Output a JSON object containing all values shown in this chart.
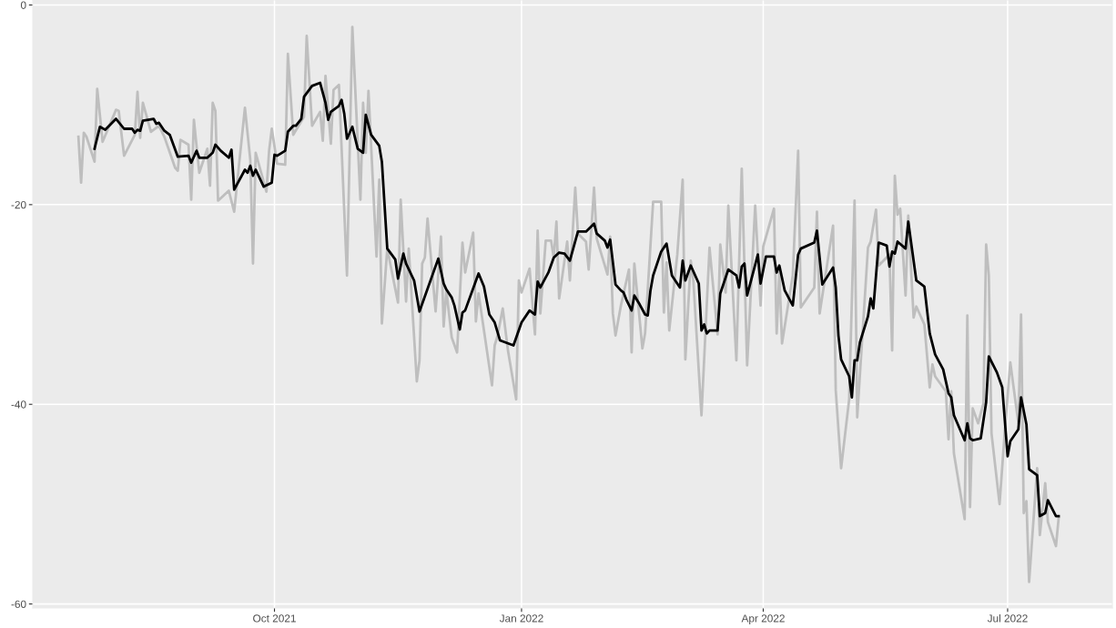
{
  "chart_data": {
    "type": "line",
    "xlim": [
      "2021-07-03",
      "2022-08-09"
    ],
    "xticks": [
      {
        "value": "2021-10-01",
        "label": "Oct 2021"
      },
      {
        "value": "2022-01-01",
        "label": "Jan 2022"
      },
      {
        "value": "2022-04-01",
        "label": "Apr 2022"
      },
      {
        "value": "2022-07-01",
        "label": "Jul 2022"
      }
    ],
    "ylim": [
      -60.4,
      0.5
    ],
    "yticks": [
      -60,
      -40,
      -20,
      0
    ],
    "grid": true,
    "line_style": "solid",
    "marker": "none",
    "series": [
      {
        "color": "#bebebe",
        "x": [
          "2021-07-20",
          "2021-07-21",
          "2021-07-22",
          "2021-07-23",
          "2021-07-26",
          "2021-07-27",
          "2021-07-29",
          "2021-08-03",
          "2021-08-04",
          "2021-08-06",
          "2021-08-10",
          "2021-08-11",
          "2021-08-12",
          "2021-08-13",
          "2021-08-16",
          "2021-08-19",
          "2021-08-21",
          "2021-08-25",
          "2021-08-26",
          "2021-08-27",
          "2021-08-30",
          "2021-08-31",
          "2021-09-01",
          "2021-09-03",
          "2021-09-06",
          "2021-09-07",
          "2021-09-08",
          "2021-09-09",
          "2021-09-10",
          "2021-09-14",
          "2021-09-16",
          "2021-09-20",
          "2021-09-22",
          "2021-09-23",
          "2021-09-24",
          "2021-09-28",
          "2021-09-29",
          "2021-09-30",
          "2021-10-02",
          "2021-10-05",
          "2021-10-06",
          "2021-10-08",
          "2021-10-12",
          "2021-10-13",
          "2021-10-15",
          "2021-10-18",
          "2021-10-19",
          "2021-10-20",
          "2021-10-22",
          "2021-10-23",
          "2021-10-25",
          "2021-10-28",
          "2021-10-30",
          "2021-11-02",
          "2021-11-03",
          "2021-11-04",
          "2021-11-05",
          "2021-11-08",
          "2021-11-09",
          "2021-11-10",
          "2021-11-12",
          "2021-11-16",
          "2021-11-17",
          "2021-11-19",
          "2021-11-20",
          "2021-11-23",
          "2021-11-24",
          "2021-11-25",
          "2021-11-26",
          "2021-11-27",
          "2021-11-30",
          "2021-12-02",
          "2021-12-03",
          "2021-12-04",
          "2021-12-06",
          "2021-12-08",
          "2021-12-10",
          "2021-12-11",
          "2021-12-14",
          "2021-12-15",
          "2021-12-16",
          "2021-12-21",
          "2021-12-22",
          "2021-12-23",
          "2021-12-25",
          "2021-12-27",
          "2021-12-30",
          "2021-12-31",
          "2022-01-01",
          "2022-01-04",
          "2022-01-06",
          "2022-01-07",
          "2022-01-08",
          "2022-01-10",
          "2022-01-12",
          "2022-01-13",
          "2022-01-14",
          "2022-01-15",
          "2022-01-18",
          "2022-01-19",
          "2022-01-21",
          "2022-01-22",
          "2022-01-25",
          "2022-01-26",
          "2022-01-28",
          "2022-01-29",
          "2022-02-02",
          "2022-02-03",
          "2022-02-04",
          "2022-02-05",
          "2022-02-07",
          "2022-02-10",
          "2022-02-11",
          "2022-02-12",
          "2022-02-15",
          "2022-02-16",
          "2022-02-19",
          "2022-02-22",
          "2022-02-23",
          "2022-02-24",
          "2022-02-25",
          "2022-02-28",
          "2022-03-02",
          "2022-03-03",
          "2022-03-05",
          "2022-03-06",
          "2022-03-09",
          "2022-03-12",
          "2022-03-15",
          "2022-03-16",
          "2022-03-18",
          "2022-03-19",
          "2022-03-22",
          "2022-03-24",
          "2022-03-26",
          "2022-03-29",
          "2022-03-31",
          "2022-04-01",
          "2022-04-05",
          "2022-04-06",
          "2022-04-07",
          "2022-04-08",
          "2022-04-12",
          "2022-04-14",
          "2022-04-15",
          "2022-04-20",
          "2022-04-21",
          "2022-04-22",
          "2022-04-27",
          "2022-04-28",
          "2022-04-30",
          "2022-05-03",
          "2022-05-05",
          "2022-05-06",
          "2022-05-10",
          "2022-05-11",
          "2022-05-13",
          "2022-05-14",
          "2022-05-18",
          "2022-05-19",
          "2022-05-20",
          "2022-05-21",
          "2022-05-22",
          "2022-05-24",
          "2022-05-25",
          "2022-05-27",
          "2022-05-28",
          "2022-05-31",
          "2022-06-02",
          "2022-06-03",
          "2022-06-04",
          "2022-06-08",
          "2022-06-09",
          "2022-06-10",
          "2022-06-11",
          "2022-06-15",
          "2022-06-16",
          "2022-06-17",
          "2022-06-18",
          "2022-06-20",
          "2022-06-22",
          "2022-06-23",
          "2022-06-24",
          "2022-06-25",
          "2022-06-28",
          "2022-06-30",
          "2022-07-02",
          "2022-07-05",
          "2022-07-06",
          "2022-07-07",
          "2022-07-08",
          "2022-07-09",
          "2022-07-12",
          "2022-07-13",
          "2022-07-15",
          "2022-07-16",
          "2022-07-19",
          "2022-07-20"
        ],
        "values": [
          -13.2,
          -17.8,
          -12.8,
          -13.2,
          -15.7,
          -8.4,
          -13.7,
          -10.5,
          -10.6,
          -15.1,
          -13.0,
          -8.7,
          -13.3,
          -9.8,
          -12.7,
          -12.1,
          -13.2,
          -16.3,
          -16.6,
          -13.5,
          -14.0,
          -19.5,
          -11.5,
          -16.8,
          -14.4,
          -18.1,
          -9.8,
          -10.6,
          -19.6,
          -18.6,
          -20.7,
          -10.3,
          -15.5,
          -25.9,
          -14.8,
          -18.7,
          -14.6,
          -12.4,
          -15.9,
          -16.0,
          -4.9,
          -13.0,
          -11.2,
          -3.1,
          -12.1,
          -10.7,
          -13.6,
          -7.1,
          -13.9,
          -8.5,
          -8.0,
          -27.1,
          -2.2,
          -19.5,
          -9.8,
          -14.8,
          -8.6,
          -25.2,
          -17.5,
          -31.9,
          -24.4,
          -29.8,
          -19.5,
          -29.7,
          -24.4,
          -37.7,
          -35.6,
          -25.9,
          -25.3,
          -21.4,
          -30.7,
          -23.2,
          -32.2,
          -28.6,
          -33.3,
          -34.8,
          -23.8,
          -26.8,
          -22.8,
          -31.7,
          -28.9,
          -38.1,
          -34.1,
          -33.2,
          -30.4,
          -34.7,
          -39.5,
          -27.6,
          -28.8,
          -26.4,
          -33.0,
          -22.6,
          -30.9,
          -23.6,
          -23.6,
          -25.3,
          -21.7,
          -29.4,
          -23.7,
          -27.6,
          -18.3,
          -22.9,
          -23.7,
          -26.5,
          -18.3,
          -23.4,
          -27.0,
          -23.2,
          -30.9,
          -33.1,
          -30.1,
          -26.5,
          -34.8,
          -25.9,
          -34.4,
          -32.9,
          -19.7,
          -19.7,
          -30.8,
          -25.8,
          -32.6,
          -25.0,
          -17.5,
          -35.5,
          -25.6,
          -27.7,
          -41.1,
          -24.3,
          -33.0,
          -24.0,
          -28.8,
          -20.1,
          -35.6,
          -16.4,
          -36.1,
          -20.1,
          -30.1,
          -24.2,
          -20.4,
          -32.9,
          -26.8,
          -33.9,
          -27.1,
          -14.6,
          -30.3,
          -28.3,
          -20.7,
          -30.9,
          -22.1,
          -38.6,
          -46.4,
          -39.5,
          -19.6,
          -41.3,
          -24.3,
          -23.7,
          -20.5,
          -26.1,
          -25.0,
          -34.6,
          -17.1,
          -21.0,
          -20.4,
          -29.1,
          -21.1,
          -31.3,
          -30.2,
          -32.0,
          -38.3,
          -36.0,
          -37.2,
          -38.7,
          -43.5,
          -38.7,
          -44.9,
          -51.5,
          -31.1,
          -50.3,
          -40.4,
          -41.9,
          -39.9,
          -24.0,
          -27.1,
          -42.9,
          -50.0,
          -42.5,
          -35.8,
          -41.9,
          -31.0,
          -50.9,
          -49.7,
          -57.8,
          -46.4,
          -53.1,
          -47.9,
          -51.8,
          -54.2,
          -51.4
        ]
      },
      {
        "color": "#000000",
        "x": [
          "2021-07-26",
          "2021-07-28",
          "2021-07-30",
          "2021-08-03",
          "2021-08-06",
          "2021-08-09",
          "2021-08-10",
          "2021-08-11",
          "2021-08-12",
          "2021-08-13",
          "2021-08-17",
          "2021-08-18",
          "2021-08-19",
          "2021-08-21",
          "2021-08-23",
          "2021-08-26",
          "2021-08-30",
          "2021-08-31",
          "2021-09-02",
          "2021-09-03",
          "2021-09-06",
          "2021-09-08",
          "2021-09-09",
          "2021-09-11",
          "2021-09-14",
          "2021-09-15",
          "2021-09-16",
          "2021-09-20",
          "2021-09-21",
          "2021-09-22",
          "2021-09-23",
          "2021-09-24",
          "2021-09-27",
          "2021-09-30",
          "2021-10-01",
          "2021-10-02",
          "2021-10-05",
          "2021-10-06",
          "2021-10-08",
          "2021-10-09",
          "2021-10-11",
          "2021-10-12",
          "2021-10-15",
          "2021-10-18",
          "2021-10-20",
          "2021-10-21",
          "2021-10-22",
          "2021-10-25",
          "2021-10-26",
          "2021-10-27",
          "2021-10-28",
          "2021-10-30",
          "2021-11-01",
          "2021-11-03",
          "2021-11-04",
          "2021-11-06",
          "2021-11-09",
          "2021-11-10",
          "2021-11-12",
          "2021-11-15",
          "2021-11-16",
          "2021-11-18",
          "2021-11-19",
          "2021-11-22",
          "2021-11-24",
          "2021-12-01",
          "2021-12-03",
          "2021-12-04",
          "2021-12-06",
          "2021-12-07",
          "2021-12-09",
          "2021-12-10",
          "2021-12-11",
          "2021-12-16",
          "2021-12-18",
          "2021-12-20",
          "2021-12-22",
          "2021-12-24",
          "2021-12-29",
          "2022-01-01",
          "2022-01-04",
          "2022-01-06",
          "2022-01-07",
          "2022-01-08",
          "2022-01-11",
          "2022-01-13",
          "2022-01-15",
          "2022-01-17",
          "2022-01-19",
          "2022-01-22",
          "2022-01-25",
          "2022-01-28",
          "2022-01-29",
          "2022-02-01",
          "2022-02-02",
          "2022-02-03",
          "2022-02-05",
          "2022-02-07",
          "2022-02-08",
          "2022-02-09",
          "2022-02-11",
          "2022-02-12",
          "2022-02-14",
          "2022-02-16",
          "2022-02-17",
          "2022-02-18",
          "2022-02-19",
          "2022-02-22",
          "2022-02-24",
          "2022-02-26",
          "2022-03-01",
          "2022-03-02",
          "2022-03-03",
          "2022-03-05",
          "2022-03-08",
          "2022-03-09",
          "2022-03-10",
          "2022-03-11",
          "2022-03-12",
          "2022-03-15",
          "2022-03-16",
          "2022-03-19",
          "2022-03-22",
          "2022-03-23",
          "2022-03-24",
          "2022-03-25",
          "2022-03-26",
          "2022-03-30",
          "2022-03-31",
          "2022-04-02",
          "2022-04-05",
          "2022-04-06",
          "2022-04-07",
          "2022-04-09",
          "2022-04-12",
          "2022-04-14",
          "2022-04-15",
          "2022-04-20",
          "2022-04-21",
          "2022-04-23",
          "2022-04-27",
          "2022-04-28",
          "2022-04-29",
          "2022-04-30",
          "2022-05-03",
          "2022-05-04",
          "2022-05-05",
          "2022-05-06",
          "2022-05-07",
          "2022-05-10",
          "2022-05-11",
          "2022-05-12",
          "2022-05-14",
          "2022-05-17",
          "2022-05-18",
          "2022-05-19",
          "2022-05-20",
          "2022-05-21",
          "2022-05-24",
          "2022-05-25",
          "2022-05-28",
          "2022-05-31",
          "2022-06-02",
          "2022-06-04",
          "2022-06-07",
          "2022-06-09",
          "2022-06-10",
          "2022-06-11",
          "2022-06-15",
          "2022-06-16",
          "2022-06-17",
          "2022-06-18",
          "2022-06-21",
          "2022-06-23",
          "2022-06-24",
          "2022-06-27",
          "2022-06-29",
          "2022-07-01",
          "2022-07-02",
          "2022-07-05",
          "2022-07-06",
          "2022-07-08",
          "2022-07-09",
          "2022-07-12",
          "2022-07-13",
          "2022-07-15",
          "2022-07-16",
          "2022-07-19",
          "2022-07-20"
        ],
        "values": [
          -14.4,
          -12.2,
          -12.5,
          -11.4,
          -12.4,
          -12.4,
          -12.8,
          -12.5,
          -12.6,
          -11.6,
          -11.4,
          -11.9,
          -11.8,
          -12.6,
          -13.0,
          -15.2,
          -15.1,
          -15.8,
          -14.6,
          -15.3,
          -15.3,
          -14.8,
          -14.0,
          -14.6,
          -15.3,
          -14.5,
          -18.5,
          -16.5,
          -16.8,
          -16.1,
          -17.1,
          -16.5,
          -18.2,
          -17.8,
          -15.0,
          -15.1,
          -14.6,
          -12.7,
          -12.1,
          -12.1,
          -11.4,
          -9.2,
          -8.1,
          -7.8,
          -9.8,
          -11.5,
          -10.7,
          -10.1,
          -9.5,
          -10.9,
          -13.4,
          -12.2,
          -14.4,
          -14.8,
          -11.0,
          -13.0,
          -14.1,
          -15.7,
          -24.4,
          -25.5,
          -27.4,
          -24.9,
          -25.9,
          -27.6,
          -30.7,
          -25.4,
          -27.9,
          -28.5,
          -29.3,
          -30.1,
          -32.5,
          -30.8,
          -30.6,
          -26.9,
          -28.2,
          -31.0,
          -31.8,
          -33.6,
          -34.1,
          -31.8,
          -30.6,
          -31.0,
          -27.7,
          -28.3,
          -26.8,
          -25.3,
          -24.8,
          -24.9,
          -25.6,
          -22.7,
          -22.7,
          -21.9,
          -22.9,
          -23.6,
          -24.3,
          -23.5,
          -28.0,
          -28.6,
          -28.8,
          -29.5,
          -30.6,
          -29.1,
          -30.0,
          -31.0,
          -31.1,
          -28.6,
          -27.1,
          -24.7,
          -23.9,
          -27.1,
          -28.3,
          -25.6,
          -27.6,
          -26.1,
          -27.9,
          -32.6,
          -32.0,
          -32.9,
          -32.6,
          -32.6,
          -28.9,
          -26.5,
          -27.1,
          -28.3,
          -26.2,
          -25.9,
          -29.1,
          -25.0,
          -27.9,
          -25.2,
          -25.2,
          -26.8,
          -26.1,
          -28.6,
          -30.1,
          -25.0,
          -24.4,
          -23.8,
          -22.6,
          -28.0,
          -26.3,
          -28.3,
          -33.1,
          -35.5,
          -37.2,
          -39.3,
          -35.6,
          -35.6,
          -33.8,
          -31.2,
          -29.4,
          -30.4,
          -23.8,
          -24.1,
          -26.2,
          -24.7,
          -24.9,
          -23.7,
          -24.4,
          -21.7,
          -27.6,
          -28.2,
          -32.9,
          -35.0,
          -36.5,
          -38.9,
          -39.3,
          -41.1,
          -43.6,
          -41.9,
          -43.4,
          -43.6,
          -43.4,
          -39.8,
          -35.2,
          -36.8,
          -38.3,
          -45.2,
          -43.7,
          -42.5,
          -39.3,
          -42.0,
          -46.5,
          -47.1,
          -51.2,
          -50.9,
          -49.6,
          -51.2,
          -51.2
        ]
      }
    ]
  }
}
